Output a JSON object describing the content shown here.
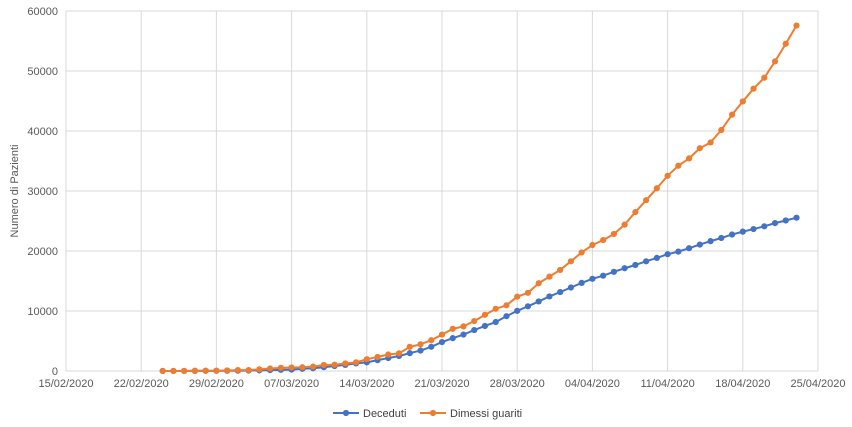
{
  "chart_data": {
    "type": "line",
    "title": "",
    "xlabel": "",
    "ylabel": "Numero di Pazienti",
    "ylim": [
      0,
      60000
    ],
    "yticks": [
      0,
      10000,
      20000,
      30000,
      40000,
      50000,
      60000
    ],
    "xlim": [
      "2020-02-15",
      "2020-04-25"
    ],
    "xticks": [
      "15/02/2020",
      "22/02/2020",
      "29/02/2020",
      "07/03/2020",
      "14/03/2020",
      "21/03/2020",
      "28/03/2020",
      "04/04/2020",
      "11/04/2020",
      "18/04/2020",
      "25/04/2020"
    ],
    "grid": true,
    "legend_position": "bottom",
    "x": [
      "2020-02-24",
      "2020-02-25",
      "2020-02-26",
      "2020-02-27",
      "2020-02-28",
      "2020-02-29",
      "2020-03-01",
      "2020-03-02",
      "2020-03-03",
      "2020-03-04",
      "2020-03-05",
      "2020-03-06",
      "2020-03-07",
      "2020-03-08",
      "2020-03-09",
      "2020-03-10",
      "2020-03-11",
      "2020-03-12",
      "2020-03-13",
      "2020-03-14",
      "2020-03-15",
      "2020-03-16",
      "2020-03-17",
      "2020-03-18",
      "2020-03-19",
      "2020-03-20",
      "2020-03-21",
      "2020-03-22",
      "2020-03-23",
      "2020-03-24",
      "2020-03-25",
      "2020-03-26",
      "2020-03-27",
      "2020-03-28",
      "2020-03-29",
      "2020-03-30",
      "2020-03-31",
      "2020-04-01",
      "2020-04-02",
      "2020-04-03",
      "2020-04-04",
      "2020-04-05",
      "2020-04-06",
      "2020-04-07",
      "2020-04-08",
      "2020-04-09",
      "2020-04-10",
      "2020-04-11",
      "2020-04-12",
      "2020-04-13",
      "2020-04-14",
      "2020-04-15",
      "2020-04-16",
      "2020-04-17",
      "2020-04-18",
      "2020-04-19",
      "2020-04-20",
      "2020-04-21",
      "2020-04-22",
      "2020-04-23"
    ],
    "series": [
      {
        "name": "Deceduti",
        "color": "#4472C4",
        "values": [
          7,
          10,
          12,
          17,
          21,
          29,
          34,
          52,
          79,
          107,
          148,
          197,
          233,
          366,
          463,
          631,
          827,
          1016,
          1266,
          1441,
          1809,
          2158,
          2503,
          2978,
          3405,
          4032,
          4825,
          5476,
          6077,
          6820,
          7503,
          8165,
          9134,
          10023,
          10779,
          11591,
          12428,
          13155,
          13915,
          14681,
          15362,
          15887,
          16523,
          17127,
          17669,
          18279,
          18849,
          19468,
          19899,
          20465,
          21067,
          21645,
          22170,
          22745,
          23227,
          23660,
          24114,
          24648,
          25085,
          25549
        ]
      },
      {
        "name": "Dimessi guariti",
        "color": "#ED7D31",
        "values": [
          1,
          1,
          3,
          45,
          46,
          46,
          83,
          149,
          160,
          276,
          414,
          523,
          589,
          622,
          724,
          1004,
          1045,
          1258,
          1439,
          1966,
          2335,
          2749,
          2941,
          4025,
          4440,
          5129,
          6072,
          7024,
          7432,
          8326,
          9362,
          10361,
          10950,
          12384,
          13030,
          14620,
          15729,
          16847,
          18278,
          19758,
          20996,
          21815,
          22837,
          24392,
          26491,
          28470,
          30455,
          32534,
          34211,
          35435,
          37130,
          38092,
          40164,
          42727,
          44927,
          47055,
          48877,
          51600,
          54543,
          57576
        ]
      }
    ]
  }
}
